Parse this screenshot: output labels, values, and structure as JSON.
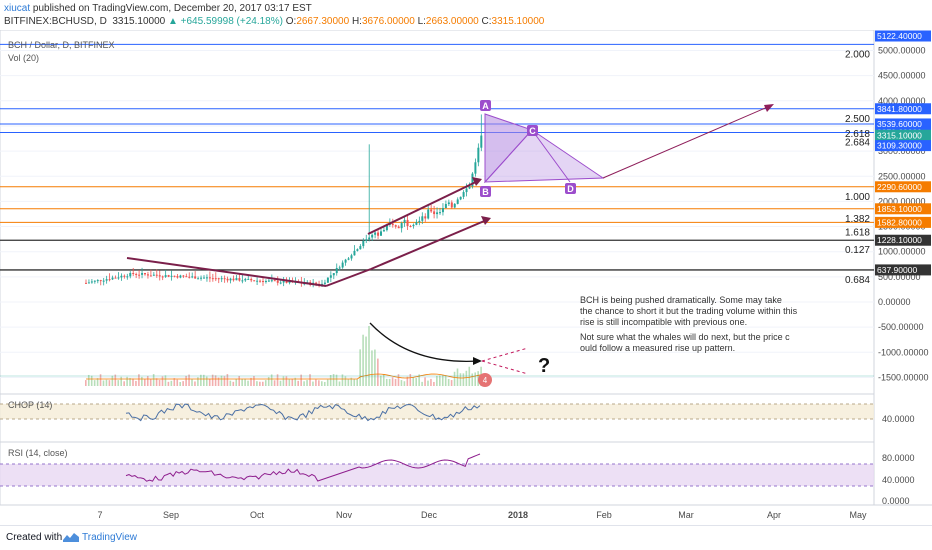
{
  "header": {
    "author": "xiucat",
    "published": " published on TradingView.com, December 20, 2017 03:17 EST",
    "symbol": "BITFINEX:BCHUSD, D",
    "last": "3315.10000",
    "change": "▲ +645.59998 (+24.18%)",
    "o_label": "O:",
    "o_value": "2667.30000",
    "h_label": "H:",
    "h_value": "3676.00000",
    "l_label": "L:",
    "l_value": "2663.00000",
    "c_label": "C:",
    "c_value": "3315.10000"
  },
  "panes": {
    "main_title": "BCH / Dollar, D, BITFINEX",
    "vol_title": "Vol (20)",
    "chop_title": "CHOP (14)",
    "rsi_title": "RSI (14, close)"
  },
  "colors": {
    "fib_blue": "#2962ff",
    "fib_orange": "#f57c00",
    "fib_black": "#333333",
    "pattern_purple": "#9c4dcc",
    "trend": "#7b1f4a",
    "candle_up": "#26a69a",
    "candle_down": "#ef5350",
    "chop_line": "#4a6fa5",
    "rsi_line": "#8e1e8e"
  },
  "chart_data": {
    "type": "candlestick",
    "title": "BCH / Dollar, D, BITFINEX",
    "y_axis_price": [
      "5000.00000",
      "4500.00000",
      "4000.00000",
      "3500.00000",
      "3000.00000",
      "2500.00000",
      "2000.00000",
      "1500.00000",
      "1000.00000",
      "500.00000",
      "0.00000",
      "-500.00000",
      "-1000.00000",
      "-1500.00000"
    ],
    "x_labels": [
      "7",
      "Sep",
      "Oct",
      "Nov",
      "Dec",
      "2018",
      "Feb",
      "Mar",
      "Apr",
      "May"
    ],
    "price_tags": [
      {
        "value": "5122.40000",
        "color": "#2962ff"
      },
      {
        "value": "3841.80000",
        "color": "#2962ff"
      },
      {
        "value": "3539.60000",
        "color": "#2962ff"
      },
      {
        "value": "3370.60000",
        "color": "#2962ff"
      },
      {
        "value": "3315.10000",
        "color": "#26a69a"
      },
      {
        "value": "3109.30000",
        "color": "#2962ff"
      },
      {
        "value": "2290.60000",
        "color": "#f57c00"
      },
      {
        "value": "1853.10000",
        "color": "#f57c00"
      },
      {
        "value": "1582.80000",
        "color": "#f57c00"
      },
      {
        "value": "1228.10000",
        "color": "#333333"
      },
      {
        "value": "637.90000",
        "color": "#333333"
      }
    ],
    "fib_levels": [
      {
        "label": "2.000",
        "price": 5122.4
      },
      {
        "label": "2.500",
        "price": 3841.8
      },
      {
        "label": "2.618",
        "price": 3539.6
      },
      {
        "label": "2.684",
        "price": 3370.6
      },
      {
        "label": "1.000",
        "price": 2290.6
      },
      {
        "label": "1.382",
        "price": 1853.1
      },
      {
        "label": "1.618",
        "price": 1582.8
      },
      {
        "label": "0.127",
        "price": 1228.1
      },
      {
        "label": "0.684",
        "price": 637.9
      }
    ],
    "pattern_points": [
      "A",
      "B",
      "C",
      "D"
    ],
    "annotation_1": "BCH is being pushed dramatically. Some may take the chance to short it but the trading volume within this rise is still incompatible with previous one.",
    "annotation_2": "Not sure what the whales will do next, but the price could follow a measured rise up pattern.",
    "question_mark": "?",
    "chop_axis": [
      "40.0000"
    ],
    "rsi_axis": [
      "80.0000",
      "40.0000",
      "0.0000"
    ],
    "volume_badge": "4"
  },
  "footer": {
    "created_with": "Created with",
    "brand": "TradingView"
  }
}
